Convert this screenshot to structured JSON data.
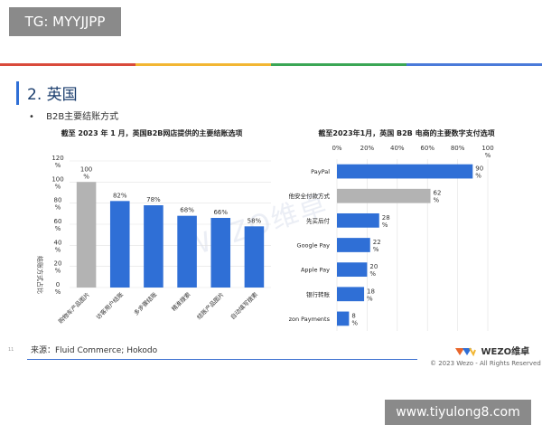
{
  "badges": {
    "top_left": "TG: MYYJJPP",
    "bottom_right": "www.tiyulong8.com"
  },
  "header": {
    "section_title": "2. 英国",
    "bullet_marker": "•",
    "bullet": "B2B主要结账方式"
  },
  "footer": {
    "source": "来源：Fluid Commerce; Hokodo",
    "page_number": "11",
    "logo_text": "WEZO维卓",
    "copyright": "© 2023 Wezo - All Rights Reserved",
    "faint_watermark": "WEZO维卓"
  },
  "colors": {
    "highlight_gray": "#b3b3b3",
    "bar_blue": "#2f6fd6",
    "grid": "#e2e2e2",
    "accent_blue": "#2f6fd6"
  },
  "chart_data": [
    {
      "type": "bar",
      "title": "截至 2023 年 1 月，英国B2B网店提供的主要结账选项",
      "ylabel": "结账方式占比",
      "ylim": [
        0,
        120
      ],
      "yticks": [
        "0 %",
        "20 %",
        "40 %",
        "60 %",
        "80 %",
        "100 %",
        "120 %"
      ],
      "categories": [
        "购物车产品图片",
        "访客用户结账",
        "多步骤结账",
        "精准搜索",
        "结账产品图片",
        "自动填写搜索"
      ],
      "values": [
        100,
        82,
        78,
        68,
        66,
        58
      ],
      "value_labels": [
        "100 %",
        "82%",
        "78%",
        "68%",
        "66%",
        "58%"
      ],
      "highlight_index": 0,
      "grid": true
    },
    {
      "type": "bar",
      "orientation": "horizontal",
      "title": "截至2023年1月，英国 B2B 电商的主要数字支付选项",
      "xlim": [
        0,
        100
      ],
      "xticks": [
        "0%",
        "20%",
        "40%",
        "60%",
        "80%",
        "100 %"
      ],
      "categories": [
        "PayPal",
        "其他安全付款方式",
        "先买后付",
        "Google Pay",
        "Apple Pay",
        "银行转账",
        "Amazon Payments"
      ],
      "values": [
        90,
        62,
        28,
        22,
        20,
        18,
        8
      ],
      "value_labels": [
        "90 %",
        "62 %",
        "28 %",
        "22 %",
        "20 %",
        "18 %",
        "8 %"
      ],
      "highlight_index": 1,
      "grid": true
    }
  ]
}
